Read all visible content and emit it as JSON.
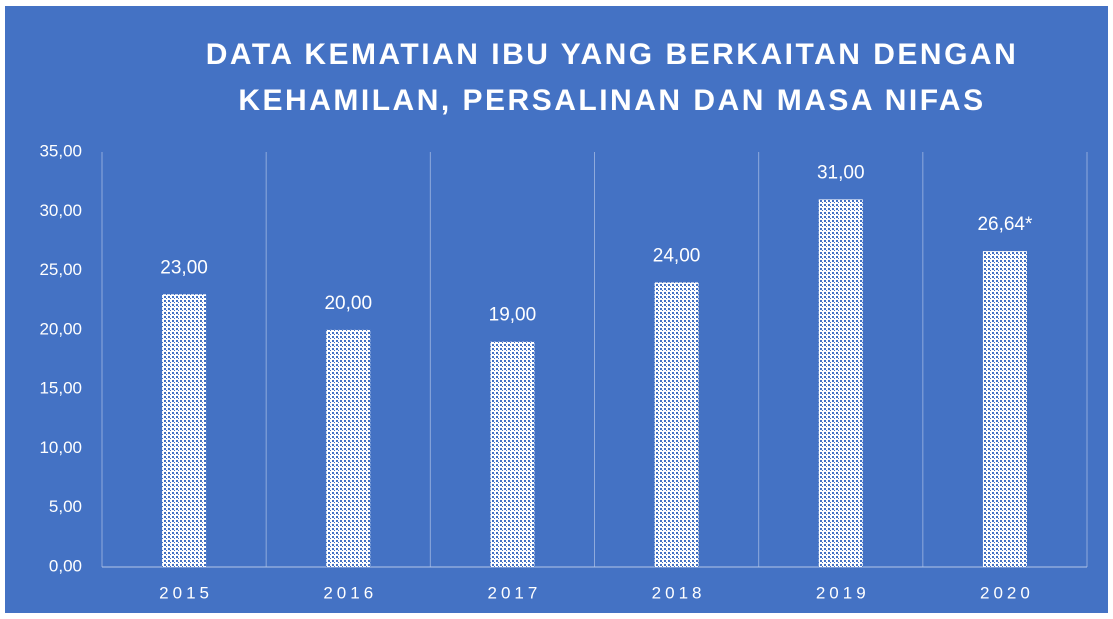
{
  "chart_data": {
    "type": "bar",
    "title": [
      "DATA KEMATIAN IBU YANG BERKAITAN DENGAN",
      "KEHAMILAN, PERSALINAN DAN MASA NIFAS"
    ],
    "categories": [
      "2015",
      "2016",
      "2017",
      "2018",
      "2019",
      "2020"
    ],
    "values": [
      23,
      20,
      19,
      24,
      31,
      26.64
    ],
    "value_labels": [
      "23,00",
      "20,00",
      "19,00",
      "24,00",
      "31,00",
      "26,64*"
    ],
    "color": "#ffffff",
    "ylim": [
      0,
      35
    ],
    "yticks": [
      {
        "value": 0,
        "label": "0,00"
      },
      {
        "value": 5,
        "label": "5,00"
      },
      {
        "value": 10,
        "label": "10,00"
      },
      {
        "value": 15,
        "label": "15,00"
      },
      {
        "value": 20,
        "label": "20,00"
      },
      {
        "value": 25,
        "label": "25,00"
      },
      {
        "value": 30,
        "label": "30,00"
      },
      {
        "value": 35,
        "label": "35,00"
      }
    ],
    "grid": false
  }
}
